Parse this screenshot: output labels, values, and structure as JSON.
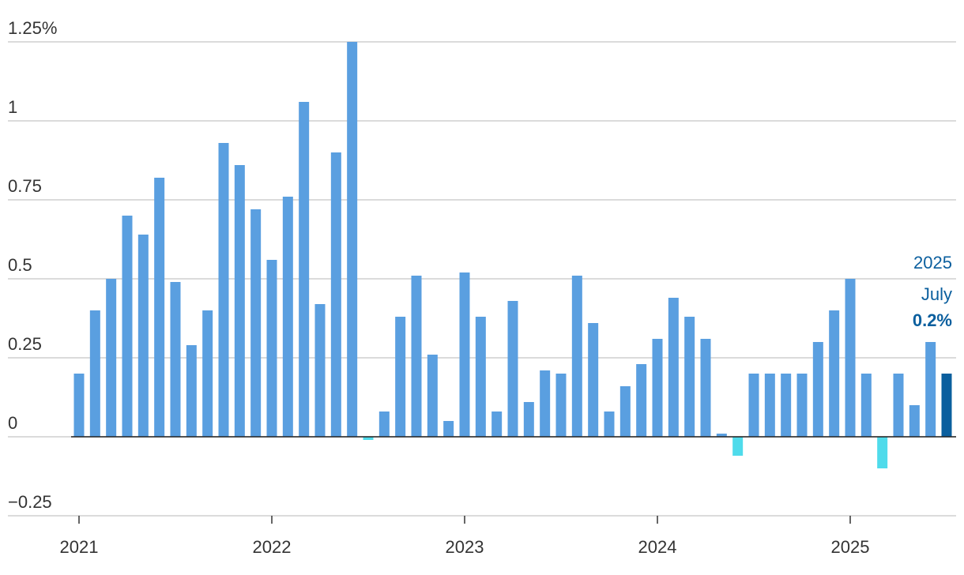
{
  "chart_data": {
    "type": "bar",
    "categories": [
      "2021",
      null,
      null,
      null,
      null,
      null,
      null,
      null,
      null,
      null,
      null,
      null,
      "2022",
      null,
      null,
      null,
      null,
      null,
      null,
      null,
      null,
      null,
      null,
      null,
      "2023",
      null,
      null,
      null,
      null,
      null,
      null,
      null,
      null,
      null,
      null,
      null,
      "2024",
      null,
      null,
      null,
      null,
      null,
      null,
      null,
      null,
      null,
      null,
      null,
      "2025",
      null,
      null,
      null,
      null,
      null,
      null
    ],
    "values": [
      0.2,
      0.4,
      0.5,
      0.7,
      0.64,
      0.82,
      0.49,
      0.29,
      0.4,
      0.93,
      0.86,
      0.72,
      0.56,
      0.76,
      1.06,
      0.42,
      0.9,
      1.25,
      -0.01,
      0.08,
      0.38,
      0.51,
      0.26,
      0.05,
      0.52,
      0.38,
      0.08,
      0.43,
      0.11,
      0.21,
      0.2,
      0.51,
      0.36,
      0.08,
      0.16,
      0.23,
      0.31,
      0.44,
      0.38,
      0.31,
      0.01,
      -0.06,
      0.2,
      0.2,
      0.2,
      0.2,
      0.3,
      0.4,
      0.5,
      0.2,
      -0.1,
      0.2,
      0.1,
      0.3,
      0.2
    ],
    "colors": [
      "#5a9fe0",
      "#5a9fe0",
      "#5a9fe0",
      "#5a9fe0",
      "#5a9fe0",
      "#5a9fe0",
      "#5a9fe0",
      "#5a9fe0",
      "#5a9fe0",
      "#5a9fe0",
      "#5a9fe0",
      "#5a9fe0",
      "#5a9fe0",
      "#5a9fe0",
      "#5a9fe0",
      "#5a9fe0",
      "#5a9fe0",
      "#5a9fe0",
      "#4fdbeb",
      "#5a9fe0",
      "#5a9fe0",
      "#5a9fe0",
      "#5a9fe0",
      "#5a9fe0",
      "#5a9fe0",
      "#5a9fe0",
      "#5a9fe0",
      "#5a9fe0",
      "#5a9fe0",
      "#5a9fe0",
      "#5a9fe0",
      "#5a9fe0",
      "#5a9fe0",
      "#5a9fe0",
      "#5a9fe0",
      "#5a9fe0",
      "#5a9fe0",
      "#5a9fe0",
      "#5a9fe0",
      "#5a9fe0",
      "#5a9fe0",
      "#4fdbeb",
      "#5a9fe0",
      "#5a9fe0",
      "#5a9fe0",
      "#5a9fe0",
      "#5a9fe0",
      "#5a9fe0",
      "#5a9fe0",
      "#5a9fe0",
      "#4fdbeb",
      "#5a9fe0",
      "#5a9fe0",
      "#5a9fe0",
      "#0b5f9e"
    ],
    "ylim": [
      -0.25,
      1.25
    ],
    "yticks": [
      {
        "value": -0.25,
        "label": "−0.25"
      },
      0,
      0.25,
      0.5,
      0.75,
      1,
      {
        "value": 1.25,
        "label": "1.25%"
      }
    ],
    "grid": true,
    "annotation": [
      "2025",
      "July",
      "0.2%"
    ],
    "annotation_color": "#0b5f9e"
  }
}
